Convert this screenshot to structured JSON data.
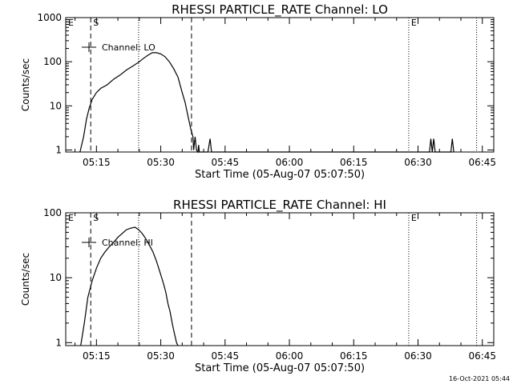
{
  "footer": {
    "timestamp": "16-Oct-2021 05:44"
  },
  "chart_data": [
    {
      "type": "line",
      "title": "RHESSI PARTICLE_RATE Channel: LO",
      "xlabel": "Start Time (05-Aug-07 05:07:50)",
      "ylabel": "Counts/sec",
      "yscale": "log",
      "ylim": [
        0.9,
        1000
      ],
      "xlim": [
        "05:07:50",
        "06:47:40"
      ],
      "xtick_labels": [
        "05:15",
        "05:30",
        "05:45",
        "06:00",
        "06:15",
        "06:30",
        "06:45"
      ],
      "ytick_labels": [
        "1",
        "10",
        "100",
        "1000"
      ],
      "legend": {
        "label": "Channel: LO",
        "position": "top-left"
      },
      "markers": [
        {
          "label": "E",
          "time": "05:07:50",
          "style": "dotted"
        },
        {
          "label": "S",
          "time": "05:13:40",
          "style": "dashed"
        },
        {
          "label": "",
          "time": "05:24:50",
          "style": "dotted"
        },
        {
          "label": "",
          "time": "05:37:10",
          "style": "dashed"
        },
        {
          "label": "E",
          "time": "06:27:50",
          "style": "dotted"
        },
        {
          "label": "",
          "time": "06:43:40",
          "style": "dotted"
        }
      ],
      "series": [
        {
          "name": "Channel: LO",
          "x": [
            "05:11:10",
            "05:12:00",
            "05:12:40",
            "05:13:20",
            "05:14:00",
            "05:15:00",
            "05:16:00",
            "05:17:30",
            "05:19:00",
            "05:20:30",
            "05:22:00",
            "05:23:30",
            "05:25:00",
            "05:26:00",
            "05:27:00",
            "05:28:00",
            "05:29:00",
            "05:30:00",
            "05:31:00",
            "05:32:00",
            "05:33:00",
            "05:34:00",
            "05:35:00",
            "05:35:40",
            "05:36:20",
            "05:37:00",
            "05:37:30",
            "05:37:40",
            "05:38:00",
            "05:38:20",
            "05:38:40",
            "05:38:50",
            "05:39:00",
            "05:40:00",
            "05:41:00",
            "05:41:30",
            "05:41:50",
            "05:42:10",
            "06:32:40",
            "06:33:00",
            "06:33:20",
            "06:33:40",
            "06:34:00",
            "06:34:20",
            "06:37:40",
            "06:38:00",
            "06:38:20"
          ],
          "y": [
            0.9,
            2,
            5,
            9,
            14,
            20,
            25,
            30,
            40,
            50,
            65,
            80,
            100,
            120,
            140,
            160,
            160,
            150,
            130,
            100,
            70,
            45,
            20,
            12,
            6,
            3,
            2,
            1,
            2,
            1,
            0.9,
            1.3,
            0.9,
            0.9,
            0.9,
            1.8,
            0.9,
            0.9,
            0.9,
            1.8,
            0.9,
            1.8,
            0.9,
            0.9,
            0.9,
            1.8,
            0.9
          ]
        }
      ]
    },
    {
      "type": "line",
      "title": "RHESSI PARTICLE_RATE Channel: HI",
      "xlabel": "Start Time (05-Aug-07 05:07:50)",
      "ylabel": "Counts/sec",
      "yscale": "log",
      "ylim": [
        0.9,
        100
      ],
      "xlim": [
        "05:07:50",
        "06:47:40"
      ],
      "xtick_labels": [
        "05:15",
        "05:30",
        "05:45",
        "06:00",
        "06:15",
        "06:30",
        "06:45"
      ],
      "ytick_labels": [
        "1",
        "10",
        "100"
      ],
      "legend": {
        "label": "Channel: HI",
        "position": "top-left"
      },
      "markers": [
        {
          "label": "E",
          "time": "05:07:50",
          "style": "dotted"
        },
        {
          "label": "S",
          "time": "05:13:40",
          "style": "dashed"
        },
        {
          "label": "",
          "time": "05:24:50",
          "style": "dotted"
        },
        {
          "label": "",
          "time": "05:37:10",
          "style": "dashed"
        },
        {
          "label": "E",
          "time": "06:27:50",
          "style": "dotted"
        },
        {
          "label": "",
          "time": "06:43:40",
          "style": "dotted"
        }
      ],
      "series": [
        {
          "name": "Channel: HI",
          "x": [
            "05:11:20",
            "05:12:10",
            "05:13:00",
            "05:14:00",
            "05:15:00",
            "05:16:00",
            "05:17:00",
            "05:18:00",
            "05:19:00",
            "05:20:00",
            "05:21:00",
            "05:22:00",
            "05:23:00",
            "05:24:00",
            "05:24:50",
            "05:25:40",
            "05:26:30",
            "05:27:20",
            "05:28:10",
            "05:29:00",
            "05:29:50",
            "05:30:40",
            "05:31:10",
            "05:31:40",
            "05:32:10",
            "05:32:40",
            "05:33:10",
            "05:33:40",
            "05:34:00"
          ],
          "y": [
            0.9,
            2,
            5,
            9,
            14,
            20,
            25,
            30,
            35,
            42,
            48,
            55,
            58,
            60,
            55,
            48,
            40,
            32,
            25,
            18,
            12,
            8,
            6,
            4,
            3,
            2,
            1.4,
            1,
            0.9
          ]
        }
      ]
    }
  ]
}
